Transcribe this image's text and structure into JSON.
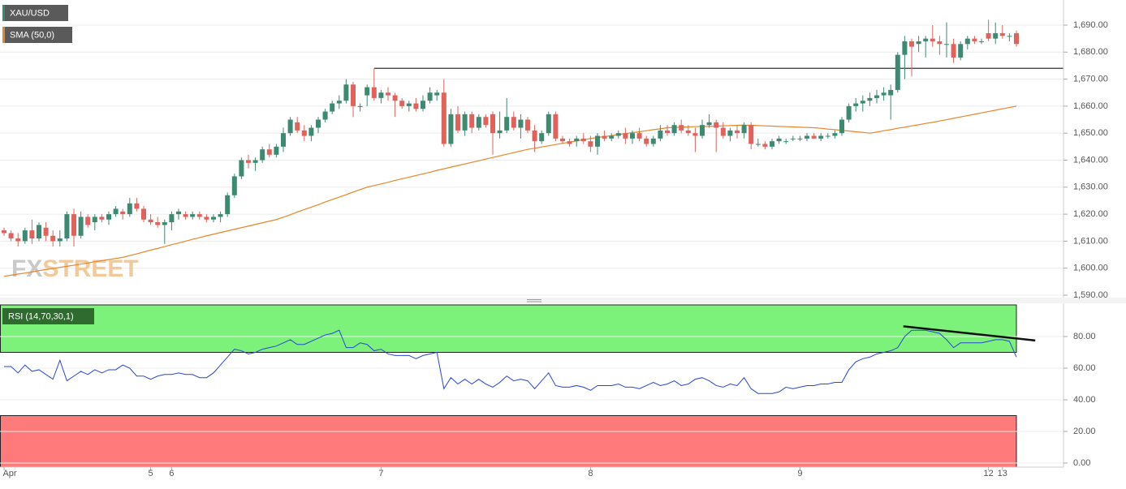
{
  "chart_data": {
    "type": "candlestick",
    "symbol": "XAU/USD",
    "logo": [
      "FX",
      "STREET"
    ],
    "categories": [
      "Apr",
      null,
      null,
      null,
      null,
      null,
      null,
      null,
      null,
      null,
      null,
      null,
      null,
      null,
      null,
      null,
      null,
      null,
      null,
      null,
      null,
      "5",
      null,
      null,
      "6",
      null,
      null,
      null,
      null,
      null,
      null,
      null,
      null,
      null,
      null,
      null,
      null,
      null,
      null,
      null,
      null,
      null,
      null,
      null,
      null,
      null,
      null,
      null,
      null,
      null,
      null,
      null,
      null,
      null,
      "7",
      null,
      null,
      null,
      null,
      null,
      null,
      null,
      null,
      null,
      null,
      null,
      null,
      null,
      null,
      null,
      null,
      null,
      null,
      null,
      null,
      null,
      null,
      null,
      null,
      null,
      null,
      null,
      null,
      null,
      "8",
      null,
      null,
      null,
      null,
      null,
      null,
      null,
      null,
      null,
      null,
      null,
      null,
      null,
      null,
      null,
      null,
      null,
      null,
      null,
      null,
      null,
      null,
      null,
      null,
      null,
      null,
      null,
      null,
      null,
      "9",
      null,
      null,
      null,
      null,
      null,
      null,
      null,
      null,
      null,
      null,
      null,
      null,
      null,
      null,
      null,
      null,
      null,
      null,
      null,
      null,
      null,
      null,
      null,
      null,
      null,
      null,
      "12",
      null,
      "13",
      null,
      null
    ],
    "ohlc": [
      [
        1614,
        1615,
        1612,
        1613
      ],
      [
        1613,
        1614,
        1610,
        1611
      ],
      [
        1611,
        1613,
        1608,
        1610
      ],
      [
        1610,
        1615,
        1609,
        1614
      ],
      [
        1614,
        1618,
        1609,
        1611
      ],
      [
        1611,
        1617,
        1610,
        1616
      ],
      [
        1615,
        1617,
        1610,
        1612
      ],
      [
        1612,
        1614,
        1608,
        1610
      ],
      [
        1610,
        1614,
        1608,
        1611
      ],
      [
        1611,
        1621,
        1610,
        1620
      ],
      [
        1620,
        1622,
        1608,
        1612
      ],
      [
        1612,
        1621,
        1611,
        1619
      ],
      [
        1619,
        1620,
        1615,
        1616
      ],
      [
        1617,
        1620,
        1614,
        1619
      ],
      [
        1619,
        1620,
        1617,
        1618
      ],
      [
        1618,
        1621,
        1616,
        1620
      ],
      [
        1620,
        1623,
        1619,
        1622
      ],
      [
        1621,
        1622,
        1618,
        1620
      ],
      [
        1620,
        1626,
        1619,
        1624
      ],
      [
        1624,
        1626,
        1621,
        1622
      ],
      [
        1622,
        1623,
        1617,
        1618
      ],
      [
        1618,
        1620,
        1616,
        1617
      ],
      [
        1617,
        1619,
        1615,
        1616
      ],
      [
        1616,
        1618,
        1609,
        1617
      ],
      [
        1617,
        1621,
        1614,
        1620
      ],
      [
        1620,
        1622,
        1618,
        1621
      ],
      [
        1620,
        1621,
        1618,
        1619
      ],
      [
        1619,
        1621,
        1618,
        1620
      ],
      [
        1620,
        1621,
        1618,
        1619
      ],
      [
        1619,
        1620,
        1617,
        1618
      ],
      [
        1618,
        1620,
        1617,
        1619
      ],
      [
        1619,
        1621,
        1617,
        1620
      ],
      [
        1620,
        1628,
        1619,
        1627
      ],
      [
        1627,
        1635,
        1626,
        1634
      ],
      [
        1634,
        1641,
        1633,
        1640
      ],
      [
        1640,
        1642,
        1637,
        1639
      ],
      [
        1639,
        1641,
        1636,
        1640
      ],
      [
        1640,
        1645,
        1639,
        1644
      ],
      [
        1644,
        1646,
        1641,
        1642
      ],
      [
        1642,
        1646,
        1641,
        1645
      ],
      [
        1645,
        1652,
        1643,
        1650
      ],
      [
        1650,
        1656,
        1649,
        1655
      ],
      [
        1654,
        1656,
        1650,
        1651
      ],
      [
        1651,
        1653,
        1647,
        1649
      ],
      [
        1649,
        1653,
        1647,
        1652
      ],
      [
        1652,
        1656,
        1650,
        1655
      ],
      [
        1655,
        1659,
        1654,
        1658
      ],
      [
        1658,
        1662,
        1657,
        1661
      ],
      [
        1661,
        1664,
        1659,
        1662
      ],
      [
        1662,
        1670,
        1661,
        1668
      ],
      [
        1668,
        1669,
        1656,
        1660
      ],
      [
        1660,
        1661,
        1658,
        1660
      ],
      [
        1664,
        1668,
        1660,
        1667
      ],
      [
        1667,
        1674,
        1662,
        1663
      ],
      [
        1663,
        1666,
        1661,
        1665
      ],
      [
        1665,
        1667,
        1662,
        1664
      ],
      [
        1664,
        1665,
        1656,
        1662
      ],
      [
        1662,
        1663,
        1659,
        1660
      ],
      [
        1660,
        1662,
        1658,
        1661
      ],
      [
        1661,
        1663,
        1658,
        1659
      ],
      [
        1659,
        1664,
        1658,
        1662
      ],
      [
        1662,
        1667,
        1661,
        1665
      ],
      [
        1664,
        1666,
        1662,
        1665
      ],
      [
        1665,
        1670,
        1645,
        1646
      ],
      [
        1646,
        1659,
        1645,
        1657
      ],
      [
        1657,
        1660,
        1650,
        1651
      ],
      [
        1651,
        1658,
        1649,
        1657
      ],
      [
        1657,
        1658,
        1650,
        1652
      ],
      [
        1652,
        1657,
        1651,
        1656
      ],
      [
        1656,
        1657,
        1652,
        1653
      ],
      [
        1657,
        1658,
        1642,
        1650
      ],
      [
        1650,
        1658,
        1648,
        1651
      ],
      [
        1651,
        1663,
        1650,
        1656
      ],
      [
        1656,
        1658,
        1651,
        1652
      ],
      [
        1652,
        1657,
        1648,
        1655
      ],
      [
        1655,
        1656,
        1650,
        1651
      ],
      [
        1651,
        1653,
        1643,
        1647
      ],
      [
        1647,
        1651,
        1646,
        1650
      ],
      [
        1650,
        1658,
        1649,
        1657
      ],
      [
        1657,
        1658,
        1647,
        1648
      ],
      [
        1648,
        1649,
        1646,
        1647
      ],
      [
        1647,
        1648,
        1645,
        1646
      ],
      [
        1647,
        1649,
        1645,
        1648
      ],
      [
        1648,
        1650,
        1646,
        1647
      ],
      [
        1647,
        1649,
        1643,
        1645
      ],
      [
        1645,
        1650,
        1642,
        1649
      ],
      [
        1649,
        1651,
        1647,
        1648
      ],
      [
        1648,
        1650,
        1647,
        1649
      ],
      [
        1649,
        1651,
        1648,
        1650
      ],
      [
        1650,
        1652,
        1646,
        1648
      ],
      [
        1648,
        1651,
        1646,
        1650
      ],
      [
        1650,
        1652,
        1647,
        1648
      ],
      [
        1648,
        1649,
        1645,
        1646
      ],
      [
        1646,
        1649,
        1645,
        1648
      ],
      [
        1648,
        1653,
        1647,
        1651
      ],
      [
        1651,
        1653,
        1649,
        1650
      ],
      [
        1650,
        1654,
        1649,
        1653
      ],
      [
        1653,
        1655,
        1650,
        1651
      ],
      [
        1651,
        1653,
        1649,
        1650
      ],
      [
        1650,
        1652,
        1643,
        1649
      ],
      [
        1649,
        1655,
        1648,
        1653
      ],
      [
        1653,
        1657,
        1652,
        1654
      ],
      [
        1654,
        1655,
        1643,
        1652
      ],
      [
        1652,
        1654,
        1648,
        1649
      ],
      [
        1649,
        1652,
        1647,
        1651
      ],
      [
        1651,
        1653,
        1648,
        1650
      ],
      [
        1650,
        1654,
        1648,
        1653
      ],
      [
        1653,
        1654,
        1644,
        1646
      ],
      [
        1646,
        1648,
        1645,
        1646
      ],
      [
        1646,
        1647,
        1644,
        1645
      ],
      [
        1645,
        1648,
        1644,
        1647
      ],
      [
        1647,
        1649,
        1646,
        1648
      ],
      [
        1647,
        1648,
        1646,
        1647
      ],
      [
        1648,
        1649,
        1647,
        1648
      ],
      [
        1648,
        1649,
        1647,
        1648
      ],
      [
        1648,
        1650,
        1647,
        1649
      ],
      [
        1649,
        1650,
        1648,
        1648
      ],
      [
        1648,
        1650,
        1647,
        1649
      ],
      [
        1649,
        1650,
        1648,
        1649
      ],
      [
        1649,
        1651,
        1648,
        1650
      ],
      [
        1650,
        1656,
        1649,
        1655
      ],
      [
        1655,
        1661,
        1654,
        1660
      ],
      [
        1660,
        1663,
        1658,
        1661
      ],
      [
        1661,
        1664,
        1658,
        1662
      ],
      [
        1662,
        1665,
        1660,
        1663
      ],
      [
        1663,
        1666,
        1661,
        1664
      ],
      [
        1664,
        1667,
        1662,
        1665
      ],
      [
        1664,
        1668,
        1655,
        1666
      ],
      [
        1666,
        1680,
        1665,
        1679
      ],
      [
        1679,
        1686,
        1670,
        1684
      ],
      [
        1684,
        1685,
        1671,
        1682
      ],
      [
        1683,
        1686,
        1680,
        1684
      ],
      [
        1684,
        1686,
        1678,
        1685
      ],
      [
        1685,
        1690,
        1682,
        1684
      ],
      [
        1684,
        1686,
        1679,
        1683
      ],
      [
        1683,
        1691,
        1678,
        1683
      ],
      [
        1683,
        1685,
        1676,
        1678
      ],
      [
        1678,
        1684,
        1677,
        1683
      ],
      [
        1683,
        1686,
        1681,
        1685
      ],
      [
        1685,
        1686,
        1683,
        1684
      ],
      [
        1684,
        1685,
        1683,
        1684
      ],
      [
        1687,
        1692,
        1684,
        1685
      ],
      [
        1685,
        1691,
        1683,
        1687
      ],
      [
        1687,
        1690,
        1685,
        1686
      ],
      [
        1686,
        1687,
        1684,
        1686
      ],
      [
        1687,
        1688,
        1682,
        1683
      ]
    ],
    "up_color": "#3d8a72",
    "down_color": "#e0625b",
    "ylim": [
      1589.7,
      1699.3
    ],
    "yticks": [
      {
        "value": 1590,
        "label": "1,590.00"
      },
      {
        "value": 1600,
        "label": "1,600.00"
      },
      {
        "value": 1610,
        "label": "1,610.00"
      },
      {
        "value": 1620,
        "label": "1,620.00"
      },
      {
        "value": 1630,
        "label": "1,630.00"
      },
      {
        "value": 1640,
        "label": "1,640.00"
      },
      {
        "value": 1650,
        "label": "1,650.00"
      },
      {
        "value": 1660,
        "label": "1,660.00"
      },
      {
        "value": 1670,
        "label": "1,670.00"
      },
      {
        "value": 1680,
        "label": "1,680.00"
      },
      {
        "value": 1690,
        "label": "1,690.00"
      }
    ],
    "grid": true,
    "sma": {
      "name": "SMA (50,0)",
      "color": "#e8862a",
      "values": [
        1597,
        1597.4,
        1597.8,
        1598.2,
        1598.6,
        1599.1,
        1599.5,
        1599.9,
        1600.3,
        1600.7,
        1601.1,
        1601.5,
        1601.9,
        1602.4,
        1602.8,
        1603.2,
        1603.6,
        1604,
        1604.7,
        1605.3,
        1606,
        1606.7,
        1607.3,
        1608,
        1608.7,
        1609.3,
        1610,
        1610.7,
        1611.3,
        1612,
        1612.6,
        1613.2,
        1613.8,
        1614.4,
        1615,
        1615.6,
        1616.2,
        1616.8,
        1617.4,
        1618,
        1618.9,
        1619.8,
        1620.8,
        1621.7,
        1622.6,
        1623.5,
        1624.5,
        1625.4,
        1626.3,
        1627.2,
        1628.2,
        1629.1,
        1630,
        1630.6,
        1631.2,
        1631.8,
        1632.5,
        1633.1,
        1633.7,
        1634.3,
        1634.9,
        1635.5,
        1636.2,
        1636.8,
        1637.4,
        1638,
        1638.6,
        1639.2,
        1639.8,
        1640.4,
        1641,
        1641.6,
        1642.2,
        1642.8,
        1643.4,
        1644,
        1644.4,
        1644.9,
        1645.3,
        1645.8,
        1646.2,
        1646.7,
        1647.1,
        1647.6,
        1648,
        1648.4,
        1648.7,
        1649.1,
        1649.5,
        1649.8,
        1650.2,
        1650.5,
        1650.9,
        1651.3,
        1651.6,
        1652,
        1652.1,
        1652.2,
        1652.3,
        1652.4,
        1652.5,
        1652.5,
        1652.6,
        1652.7,
        1652.8,
        1652.9,
        1653,
        1652.9,
        1652.8,
        1652.7,
        1652.6,
        1652.5,
        1652.4,
        1652.3,
        1652.2,
        1652.1,
        1652,
        1651.8,
        1651.5,
        1651.3,
        1651,
        1650.8,
        1650.5,
        1650.3,
        1650,
        1650.4,
        1650.9,
        1651.3,
        1651.8,
        1652.2,
        1652.7,
        1653.1,
        1653.6,
        1654,
        1654.5,
        1655,
        1655.5,
        1656,
        1656.5,
        1657,
        1657.5,
        1658,
        1658.5,
        1659,
        1659.5,
        1660
      ]
    },
    "resistance": {
      "y": 1674,
      "from": 53
    },
    "rsi": {
      "name": "RSI (14,70,30,1)",
      "color": "#2a46d6",
      "values": [
        61,
        61,
        57,
        62,
        58,
        59,
        56,
        53,
        65,
        52,
        55,
        58,
        56,
        59,
        57,
        59,
        59,
        62,
        60,
        55,
        55,
        53,
        55,
        56,
        56,
        57,
        56,
        56,
        54,
        54,
        57,
        62,
        67,
        72,
        71,
        69,
        70,
        72,
        73,
        74,
        76,
        78,
        75,
        75,
        77,
        79,
        81,
        82,
        84,
        73,
        73,
        76,
        75,
        71,
        72,
        69,
        68,
        68,
        68,
        66,
        68,
        69,
        70,
        47,
        54,
        50,
        53,
        50,
        53,
        50,
        48,
        51,
        55,
        52,
        53,
        52,
        47,
        52,
        57,
        49,
        48,
        48,
        49,
        48,
        46,
        49,
        49,
        49,
        50,
        48,
        48,
        47,
        49,
        51,
        49,
        50,
        52,
        49,
        50,
        53,
        54,
        52,
        49,
        48,
        50,
        49,
        54,
        47,
        44,
        44,
        44,
        45,
        48,
        47,
        48,
        49,
        49,
        50,
        50,
        51,
        51,
        59,
        64,
        66,
        67,
        69,
        70,
        71,
        73,
        80,
        84,
        84,
        84,
        83,
        82,
        78,
        73,
        76,
        76,
        76,
        76,
        77,
        78,
        78,
        77,
        67
      ],
      "ylim": [
        0,
        100
      ],
      "yticks": [
        {
          "value": 0,
          "label": "0.00"
        },
        {
          "value": 20,
          "label": "20.00"
        },
        {
          "value": 40,
          "label": "40.00"
        },
        {
          "value": 60,
          "label": "60.00"
        },
        {
          "value": 80,
          "label": "80.00"
        }
      ],
      "overbought": 70,
      "oversold": 30,
      "trendline": {
        "from": [
          128.8,
          86.5
        ],
        "to": [
          147.7,
          77.5
        ]
      }
    }
  }
}
